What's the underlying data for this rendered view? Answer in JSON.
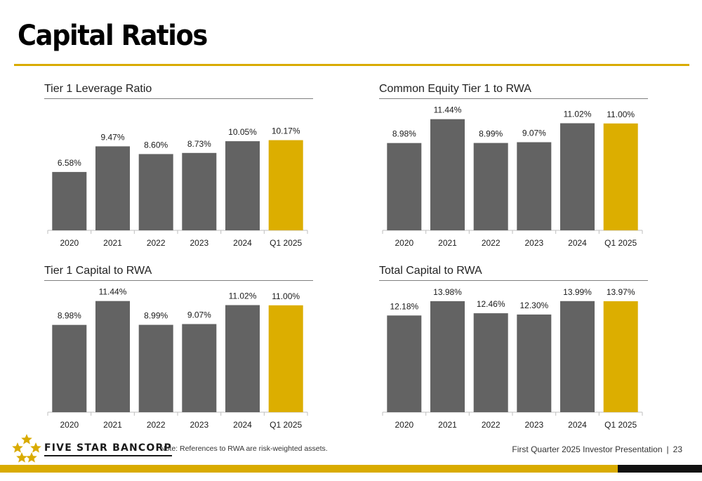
{
  "page": {
    "title": "Capital Ratios",
    "brand": "FIVE STAR BANCORP",
    "note": "Note: References to RWA are risk-weighted assets.",
    "footer_text": "First Quarter 2025 Investor Presentation",
    "footer_sep": "|",
    "page_number": "23"
  },
  "colors": {
    "bar": "#636363",
    "highlight": "#dcae00",
    "accent": "#d9ab00"
  },
  "chart_data": [
    {
      "type": "bar",
      "title": "Tier 1 Leverage Ratio",
      "categories": [
        "2020",
        "2021",
        "2022",
        "2023",
        "2024",
        "Q1 2025"
      ],
      "values": [
        6.58,
        9.47,
        8.6,
        8.73,
        10.05,
        10.17
      ],
      "labels": [
        "6.58%",
        "9.47%",
        "8.60%",
        "8.73%",
        "10.05%",
        "10.17%"
      ],
      "highlight_index": 5,
      "ylim": [
        0,
        13.7
      ],
      "grid": false,
      "legend": "none"
    },
    {
      "type": "bar",
      "title": "Common Equity Tier 1 to RWA",
      "categories": [
        "2020",
        "2021",
        "2022",
        "2023",
        "2024",
        "Q1 2025"
      ],
      "values": [
        8.98,
        11.44,
        8.99,
        9.07,
        11.02,
        11.0
      ],
      "labels": [
        "8.98%",
        "11.44%",
        "8.99%",
        "9.07%",
        "11.02%",
        "11.00%"
      ],
      "highlight_index": 5,
      "ylim": [
        0,
        12.5
      ],
      "grid": false,
      "legend": "none"
    },
    {
      "type": "bar",
      "title": "Tier 1 Capital to RWA",
      "categories": [
        "2020",
        "2021",
        "2022",
        "2023",
        "2024",
        "Q1 2025"
      ],
      "values": [
        8.98,
        11.44,
        8.99,
        9.07,
        11.02,
        11.0
      ],
      "labels": [
        "8.98%",
        "11.44%",
        "8.99%",
        "9.07%",
        "11.02%",
        "11.00%"
      ],
      "highlight_index": 5,
      "ylim": [
        0,
        12.5
      ],
      "grid": false,
      "legend": "none"
    },
    {
      "type": "bar",
      "title": "Total Capital to RWA",
      "categories": [
        "2020",
        "2021",
        "2022",
        "2023",
        "2024",
        "Q1 2025"
      ],
      "values": [
        12.18,
        13.98,
        12.46,
        12.3,
        13.99,
        13.97
      ],
      "labels": [
        "12.18%",
        "13.98%",
        "12.46%",
        "12.30%",
        "13.99%",
        "13.97%"
      ],
      "highlight_index": 5,
      "ylim": [
        0,
        15.3
      ],
      "grid": false,
      "legend": "none"
    }
  ]
}
